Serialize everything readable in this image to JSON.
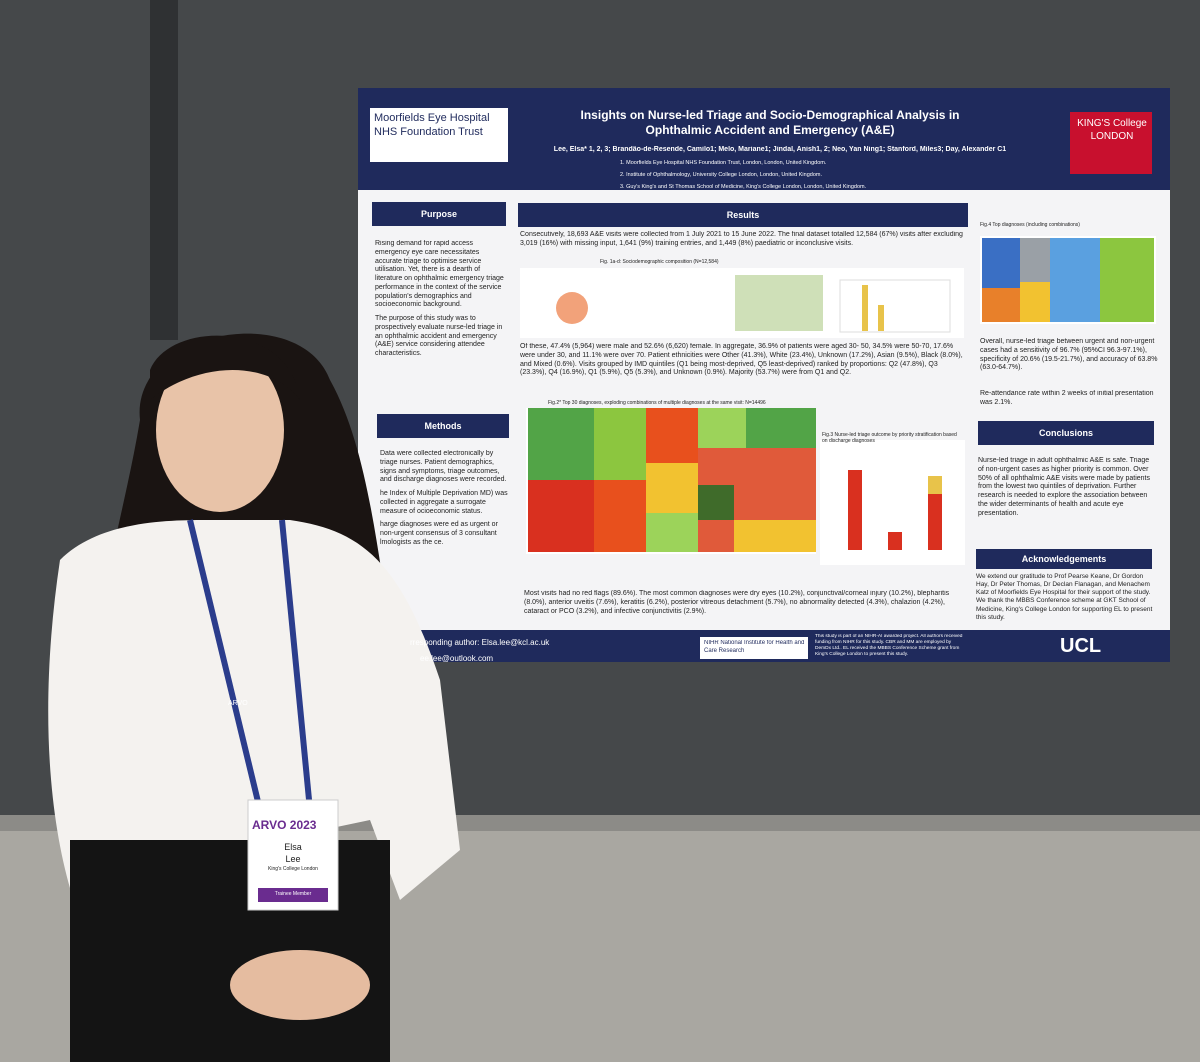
{
  "poster": {
    "logo_left": "Moorfields Eye Hospital NHS Foundation Trust",
    "logo_right": "KING'S College LONDON",
    "title": "Insights on Nurse-led Triage and Socio-Demographical Analysis in Ophthalmic Accident and Emergency (A&E)",
    "authors": "Lee, Elsa* 1, 2, 3; Brandão-de-Resende, Camilo1; Melo, Mariane1; Jindal, Anish1, 2; Neo, Yan Ning1; Stanford, Miles3; Day, Alexander C1",
    "affiliations": [
      "1. Moorfields Eye Hospital NHS Foundation Trust, London, London, United Kingdom.",
      "2. Institute of Ophthalmology, University College London, London, United Kingdom.",
      "3. Guy's King's and St Thomas School of Medicine, King's College London, London, United Kingdom."
    ],
    "purpose": {
      "heading": "Purpose",
      "text": [
        "Rising demand for rapid access emergency eye care necessitates accurate triage to optimise service utilisation. Yet, there is a dearth of literature on ophthalmic emergency triage performance in the context of the service population's demographics and socioeconomic background.",
        "The purpose of this study was to prospectively evaluate nurse-led triage in an ophthalmic accident and emergency (A&E) service considering attendee characteristics."
      ]
    },
    "methods": {
      "heading": "Methods",
      "text": [
        "Data were collected electronically by triage nurses. Patient demographics, signs and symptoms, triage outcomes, and discharge diagnoses were recorded.",
        "he Index of Multiple Deprivation MD) was collected in aggregate a surrogate measure of ocioeconomic status.",
        "harge diagnoses were ed as urgent or non-urgent consensus of 3 consultant lmologists as the ce."
      ]
    },
    "results": {
      "heading": "Results",
      "text": [
        "Consecutively, 18,693 A&E visits were collected from 1 July 2021 to 15 June 2022. The final dataset totalled 12,584 (67%) visits after excluding 3,019 (16%) with missing input, 1,641 (9%) training entries, and 1,449 (8%) paediatric or inconclusive visits.",
        "Of these, 47.4% (5,964) were male and 52.6% (6,620) female. In aggregate, 36.9% of patients were aged 30- 50, 34.5% were 50-70, 17.6% were under 30, and 11.1% were over 70. Patient ethnicities were Other (41.3%), White (23.4%), Unknown (17.2%), Asian (9.5%), Black (8.0%), and Mixed (0.6%). Visits grouped by IMD quintiles (Q1 being most-deprived, Q5 least-deprived) ranked by proportions: Q2 (47.8%), Q3 (23.3%), Q4 (16.9%), Q1 (5.9%), Q5 (5.3%), and Unknown (0.9%). Majority (53.7%) were from Q1 and Q2.",
        "Most visits had no red flags (89.6%). The most common diagnoses were dry eyes (10.2%), conjunctival/corneal injury (10.2%), blepharitis (8.0%), anterior uveitis (7.6%), keratitis (6.2%), posterior vitreous detachment (5.7%), no abnormality detected (4.3%), chalazion (4.2%), cataract or PCO (3.2%), and infective conjunctivitis (2.9%)."
      ],
      "fig1": "Fig. 1a-d: Sociodemographic composition (N=12,584)",
      "fig2": "Fig.2* Top 30 diagnoses, exploding combinations of multiple diagnoses at the same visit: N=14496",
      "fig3": "Fig.3 Nurse-led triage outcome by priority stratification based on discharge diagnoses"
    },
    "right": {
      "fig4": "Fig.4 Top diagnoses (including combinations)",
      "text": [
        "Overall, nurse-led triage between urgent and non-urgent cases had a sensitivity of 96.7% (95%CI 96.3-97.1%), specificity of 20.6% (19.5-21.7%), and accuracy of 63.8% (63.0-64.7%).",
        "Re-attendance rate within 2 weeks of initial presentation was 2.1%."
      ]
    },
    "conclusions": {
      "heading": "Conclusions",
      "text": "Nurse-led triage in adult ophthalmic A&E is safe. Triage of non-urgent cases as higher priority is common. Over 50% of all ophthalmic A&E visits were made by patients from the lowest two quintiles of deprivation. Further research is needed to explore the association between the wider determinants of health and acute eye presentation."
    },
    "acknowledgements": {
      "heading": "Acknowledgements",
      "text": "We extend our gratitude to Prof Pearse Keane, Dr Gordon Hay, Dr Peter Thomas, Dr Declan Flanagan, and Menachem Katz of Moorfields Eye Hospital for their support of the study. We thank the MBBS Conference scheme at GKT School of Medicine, King's College London for supporting EL to present this study."
    },
    "footer": {
      "contact": [
        "rresponding author: Elsa.lee@kcl.ac.uk",
        "ee.lee@outlook.com"
      ],
      "nihr": "NIHR National Institute for Health and Care Research",
      "note": "This study is part of an NIHR-AI awarded project. All authors received funding from NIHR for this study. CBR and MM are employed by DemDx Ltd.. EL received the MBBS Conference Scheme grant from King's College London to present this study.",
      "ucl": "UCL"
    }
  },
  "badge": {
    "event": "ARVO 2023",
    "first": "Elsa",
    "last": "Lee",
    "org": "King's College London",
    "member": "Trainee Member",
    "lanyard": "ARVO"
  }
}
